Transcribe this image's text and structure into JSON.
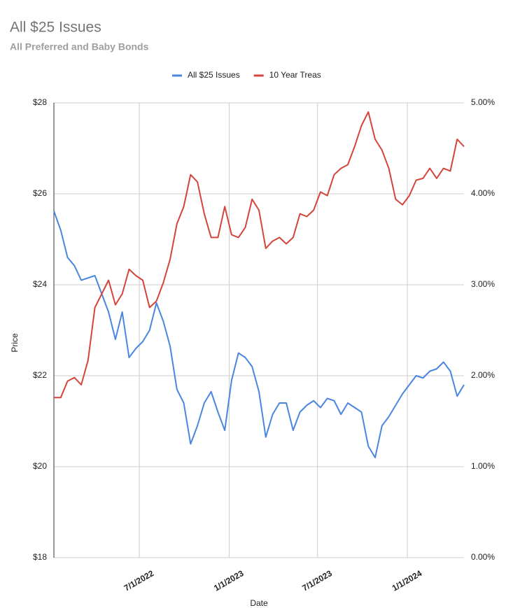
{
  "chart_data": {
    "type": "line",
    "title": "All $25 Issues",
    "subtitle": "All Preferred and Baby Bonds",
    "x_label": "Date",
    "y_label": "Price",
    "x": [
      "2022-01-07",
      "2022-01-21",
      "2022-02-04",
      "2022-02-18",
      "2022-03-04",
      "2022-03-18",
      "2022-04-01",
      "2022-04-15",
      "2022-04-29",
      "2022-05-13",
      "2022-05-27",
      "2022-06-10",
      "2022-06-24",
      "2022-07-08",
      "2022-07-22",
      "2022-08-05",
      "2022-08-19",
      "2022-09-02",
      "2022-09-16",
      "2022-09-30",
      "2022-10-14",
      "2022-10-28",
      "2022-11-11",
      "2022-11-25",
      "2022-12-09",
      "2022-12-23",
      "2023-01-06",
      "2023-01-20",
      "2023-02-03",
      "2023-02-17",
      "2023-03-03",
      "2023-03-17",
      "2023-03-31",
      "2023-04-14",
      "2023-04-28",
      "2023-05-12",
      "2023-05-26",
      "2023-06-09",
      "2023-06-23",
      "2023-07-07",
      "2023-07-21",
      "2023-08-04",
      "2023-08-18",
      "2023-09-01",
      "2023-09-15",
      "2023-09-29",
      "2023-10-13",
      "2023-10-27",
      "2023-11-10",
      "2023-11-24",
      "2023-12-08",
      "2023-12-22",
      "2024-01-05",
      "2024-01-19",
      "2024-02-02",
      "2024-02-16",
      "2024-03-01",
      "2024-03-15",
      "2024-03-29",
      "2024-04-12",
      "2024-04-26"
    ],
    "series": [
      {
        "name": "All $25 Issues",
        "color": "#4a86e0",
        "values": [
          25.62,
          25.2,
          24.6,
          24.42,
          24.1,
          24.15,
          24.2,
          23.8,
          23.4,
          22.8,
          23.4,
          22.4,
          22.6,
          22.75,
          23.0,
          23.6,
          23.2,
          22.65,
          21.7,
          21.4,
          20.5,
          20.9,
          21.4,
          21.65,
          21.2,
          20.8,
          21.9,
          22.5,
          22.4,
          22.2,
          21.65,
          20.65,
          21.15,
          21.4,
          21.4,
          20.8,
          21.2,
          21.35,
          21.45,
          21.3,
          21.5,
          21.45,
          21.15,
          21.4,
          21.3,
          21.2,
          20.45,
          20.2,
          20.9,
          21.1,
          21.35,
          21.6,
          21.8,
          22.0,
          21.95,
          22.1,
          22.15,
          22.3,
          22.1,
          21.55,
          21.8
        ]
      },
      {
        "name": "10 Year Treas",
        "color": "#d5443a",
        "axis": "y2",
        "values": [
          1.76,
          1.76,
          1.94,
          1.98,
          1.9,
          2.17,
          2.75,
          2.9,
          3.05,
          2.78,
          2.9,
          3.17,
          3.1,
          3.05,
          2.75,
          2.82,
          3.02,
          3.28,
          3.67,
          3.86,
          4.21,
          4.13,
          3.78,
          3.52,
          3.52,
          3.86,
          3.55,
          3.52,
          3.63,
          3.94,
          3.82,
          3.4,
          3.48,
          3.52,
          3.45,
          3.52,
          3.78,
          3.75,
          3.82,
          4.02,
          3.98,
          4.21,
          4.28,
          4.32,
          4.52,
          4.75,
          4.9,
          4.6,
          4.48,
          4.28,
          3.94,
          3.88,
          3.98,
          4.15,
          4.17,
          4.28,
          4.17,
          4.28,
          4.25,
          4.6,
          4.52
        ]
      }
    ],
    "xlim": [
      "2022-01-07",
      "2024-04-26"
    ],
    "xticks": [
      {
        "value": "2022-07-01",
        "label": "7/1/2022"
      },
      {
        "value": "2023-01-01",
        "label": "1/1/2023"
      },
      {
        "value": "2023-07-01",
        "label": "7/1/2023"
      },
      {
        "value": "2024-01-01",
        "label": "1/1/2024"
      }
    ],
    "ylim": [
      18,
      28
    ],
    "yticks": [
      {
        "value": 18,
        "label": "$18"
      },
      {
        "value": 20,
        "label": "$20"
      },
      {
        "value": 22,
        "label": "$22"
      },
      {
        "value": 24,
        "label": "$24"
      },
      {
        "value": 26,
        "label": "$26"
      },
      {
        "value": 28,
        "label": "$28"
      }
    ],
    "y2lim": [
      0,
      5
    ],
    "y2ticks": [
      {
        "value": 0,
        "label": "0.00%"
      },
      {
        "value": 1,
        "label": "1.00%"
      },
      {
        "value": 2,
        "label": "2.00%"
      },
      {
        "value": 3,
        "label": "3.00%"
      },
      {
        "value": 4,
        "label": "4.00%"
      },
      {
        "value": 5,
        "label": "5.00%"
      }
    ],
    "grid": true,
    "legend": "top"
  }
}
